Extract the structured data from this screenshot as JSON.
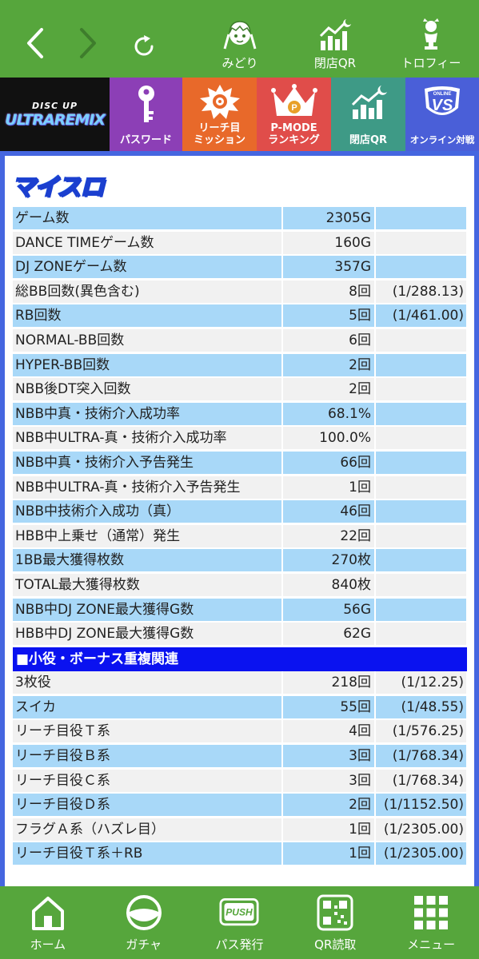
{
  "topnav": {
    "items": [
      {
        "label": "みどり",
        "icon": "midori-character-icon"
      },
      {
        "label": "閉店QR",
        "icon": "closing-qr-chart-icon"
      },
      {
        "label": "トロフィー",
        "icon": "trophy-character-icon"
      }
    ]
  },
  "menu": {
    "logo_top": "DISC UP",
    "logo_main": "ULTRAREMIX",
    "tiles": [
      {
        "label": "パスワード"
      },
      {
        "label": "リーチ目\nミッション"
      },
      {
        "label": "P-MODE\nランキング",
        "badge": "P"
      },
      {
        "label": "閉店QR"
      },
      {
        "label": "オンライン対戦",
        "badge_top": "ONLINE",
        "badge": "VS"
      }
    ]
  },
  "panel": {
    "title": "マイスロ",
    "rows": [
      {
        "label": "ゲーム数",
        "value": "2305G",
        "extra": ""
      },
      {
        "label": "DANCE TIMEゲーム数",
        "value": "160G",
        "extra": ""
      },
      {
        "label": "DJ ZONEゲーム数",
        "value": "357G",
        "extra": ""
      },
      {
        "label": "総BB回数(異色含む)",
        "value": "8回",
        "extra": "(1/288.13)"
      },
      {
        "label": "RB回数",
        "value": "5回",
        "extra": "(1/461.00)"
      },
      {
        "label": "NORMAL-BB回数",
        "value": "6回",
        "extra": ""
      },
      {
        "label": "HYPER-BB回数",
        "value": "2回",
        "extra": ""
      },
      {
        "label": "NBB後DT突入回数",
        "value": "2回",
        "extra": ""
      },
      {
        "label": "NBB中真・技術介入成功率",
        "value": "68.1%",
        "extra": ""
      },
      {
        "label": "NBB中ULTRA-真・技術介入成功率",
        "value": "100.0%",
        "extra": ""
      },
      {
        "label": "NBB中真・技術介入予告発生",
        "value": "66回",
        "extra": ""
      },
      {
        "label": "NBB中ULTRA-真・技術介入予告発生",
        "value": "1回",
        "extra": ""
      },
      {
        "label": "NBB中技術介入成功（真）",
        "value": "46回",
        "extra": ""
      },
      {
        "label": "HBB中上乗せ（通常）発生",
        "value": "22回",
        "extra": ""
      },
      {
        "label": "1BB最大獲得枚数",
        "value": "270枚",
        "extra": ""
      },
      {
        "label": "TOTAL最大獲得枚数",
        "value": "840枚",
        "extra": ""
      },
      {
        "label": "NBB中DJ ZONE最大獲得G数",
        "value": "56G",
        "extra": ""
      },
      {
        "label": "HBB中DJ ZONE最大獲得G数",
        "value": "62G",
        "extra": ""
      }
    ],
    "section_title": "■小役・ボーナス重複関連",
    "rows2": [
      {
        "label": "3枚役",
        "value": "218回",
        "extra": "(1/12.25)"
      },
      {
        "label": "スイカ",
        "value": "55回",
        "extra": "(1/48.55)"
      },
      {
        "label": "リーチ目役Ｔ系",
        "value": "4回",
        "extra": "(1/576.25)"
      },
      {
        "label": "リーチ目役Ｂ系",
        "value": "3回",
        "extra": "(1/768.34)"
      },
      {
        "label": "リーチ目役Ｃ系",
        "value": "3回",
        "extra": "(1/768.34)"
      },
      {
        "label": "リーチ目役Ｄ系",
        "value": "2回",
        "extra": "(1/1152.50)"
      },
      {
        "label": "フラグＡ系（ハズレ目）",
        "value": "1回",
        "extra": "(1/2305.00)"
      },
      {
        "label": "リーチ目役Ｔ系＋RB",
        "value": "1回",
        "extra": "(1/2305.00)"
      }
    ]
  },
  "bottomnav": {
    "items": [
      {
        "label": "ホーム",
        "icon": "home-icon"
      },
      {
        "label": "ガチャ",
        "icon": "gacha-icon"
      },
      {
        "label": "パス発行",
        "icon": "push-pass-icon",
        "badge": "PUSH"
      },
      {
        "label": "QR読取",
        "icon": "qr-scan-icon"
      },
      {
        "label": "メニュー",
        "icon": "menu-grid-icon"
      }
    ]
  },
  "colors": {
    "nav_green": "#56a63c",
    "panel_blue": "#4566e0",
    "row_blue": "#a8d8f8",
    "row_grey": "#f1f1f1",
    "section_blue": "#0a12f0"
  }
}
